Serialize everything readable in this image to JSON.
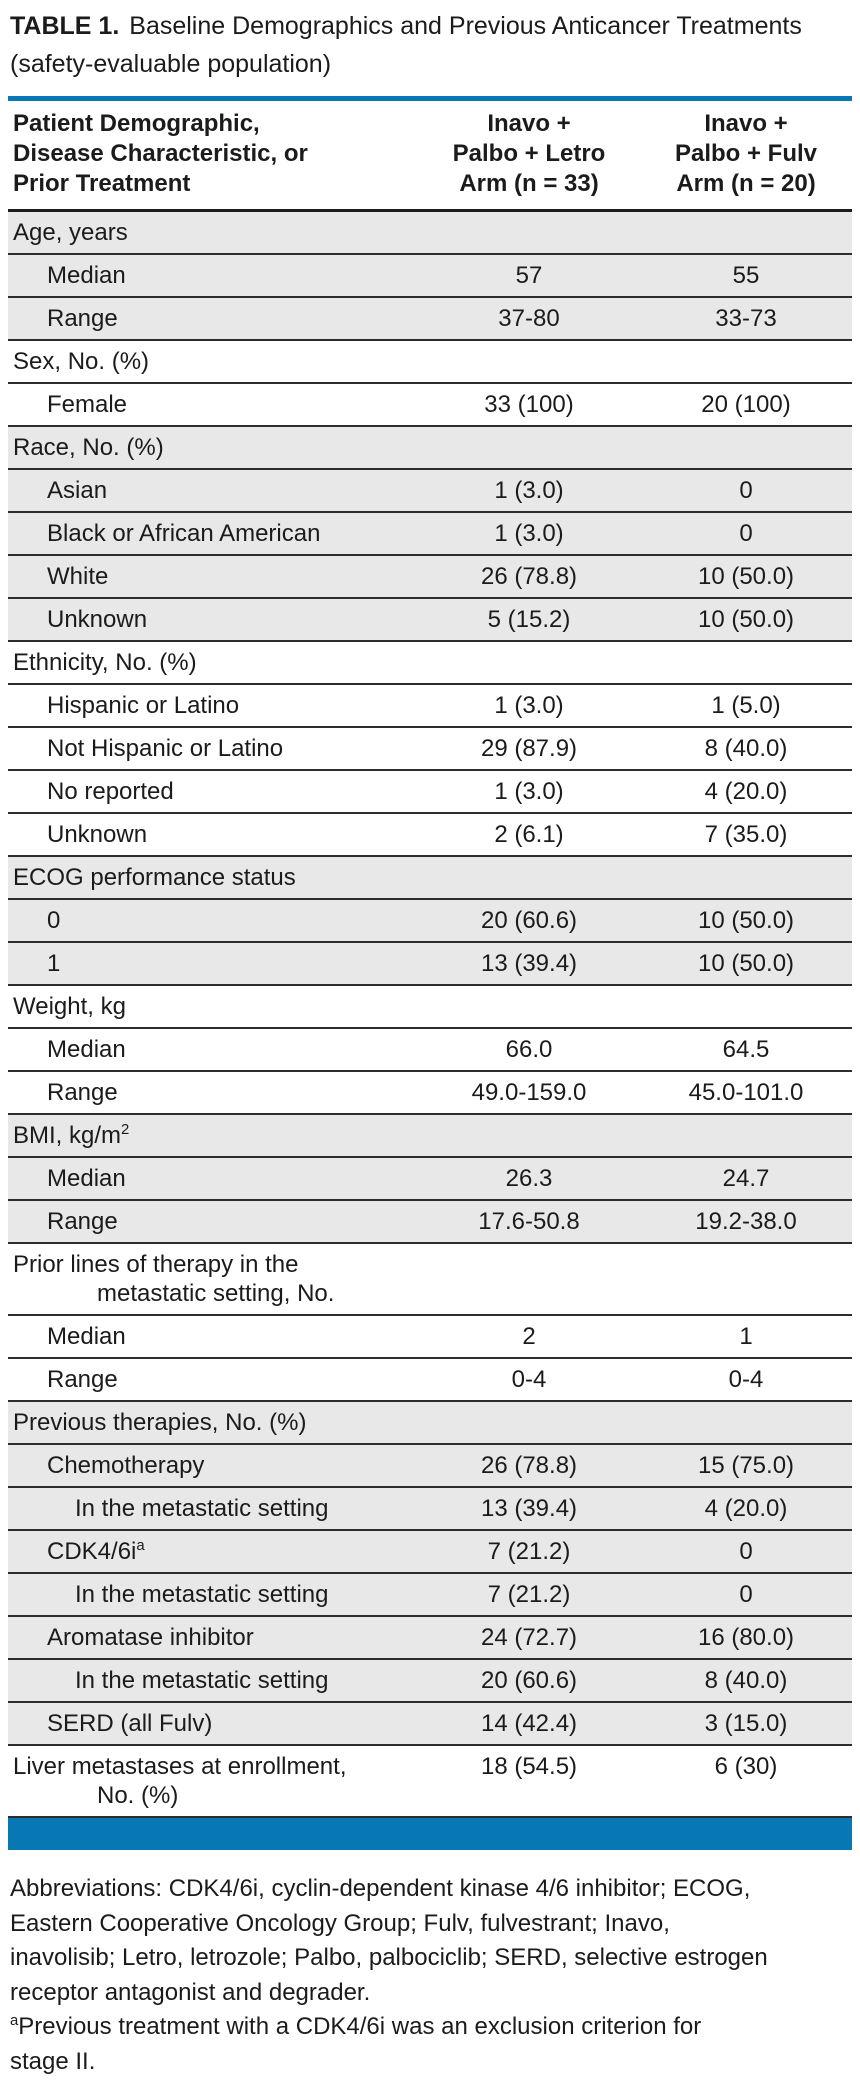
{
  "colors": {
    "accent_blue": "#0878b5",
    "row_shade": "#e8e8e8"
  },
  "title": {
    "label_bold": "TABLE 1.",
    "line1": "Baseline Demographics and Previous Anticancer Treatments",
    "line2": "(safety-evaluable population)"
  },
  "table": {
    "header": {
      "col1_lines": [
        "Patient Demographic,",
        "Disease Characteristic, or",
        "Prior Treatment"
      ],
      "col2_lines": [
        "Inavo +",
        "Palbo + Letro",
        "Arm (n = 33)"
      ],
      "col3_lines": [
        "Inavo +",
        "Palbo + Fulv",
        "Arm (n = 20)"
      ]
    },
    "rows": [
      {
        "label": "Age, years",
        "indent": 0,
        "c2": "",
        "c3": "",
        "shaded": true
      },
      {
        "label": "Median",
        "indent": 1,
        "c2": "57",
        "c3": "55",
        "shaded": true
      },
      {
        "label": "Range",
        "indent": 1,
        "c2": "37-80",
        "c3": "33-73",
        "shaded": true
      },
      {
        "label": "Sex, No. (%)",
        "indent": 0,
        "c2": "",
        "c3": "",
        "shaded": false
      },
      {
        "label": "Female",
        "indent": 1,
        "c2": "33 (100)",
        "c3": "20 (100)",
        "shaded": false
      },
      {
        "label": "Race, No. (%)",
        "indent": 0,
        "c2": "",
        "c3": "",
        "shaded": true
      },
      {
        "label": "Asian",
        "indent": 1,
        "c2": "1 (3.0)",
        "c3": "0",
        "shaded": true
      },
      {
        "label": "Black or African American",
        "indent": 1,
        "c2": "1 (3.0)",
        "c3": "0",
        "shaded": true
      },
      {
        "label": "White",
        "indent": 1,
        "c2": "26 (78.8)",
        "c3": "10 (50.0)",
        "shaded": true
      },
      {
        "label": "Unknown",
        "indent": 1,
        "c2": "5 (15.2)",
        "c3": "10 (50.0)",
        "shaded": true
      },
      {
        "label": "Ethnicity, No. (%)",
        "indent": 0,
        "c2": "",
        "c3": "",
        "shaded": false
      },
      {
        "label": "Hispanic or Latino",
        "indent": 1,
        "c2": "1 (3.0)",
        "c3": "1 (5.0)",
        "shaded": false
      },
      {
        "label": "Not Hispanic or Latino",
        "indent": 1,
        "c2": "29 (87.9)",
        "c3": "8 (40.0)",
        "shaded": false
      },
      {
        "label": "No reported",
        "indent": 1,
        "c2": "1 (3.0)",
        "c3": "4 (20.0)",
        "shaded": false
      },
      {
        "label": "Unknown",
        "indent": 1,
        "c2": "2 (6.1)",
        "c3": "7 (35.0)",
        "shaded": false
      },
      {
        "label": "ECOG performance status",
        "indent": 0,
        "c2": "",
        "c3": "",
        "shaded": true
      },
      {
        "label": "0",
        "indent": 1,
        "c2": "20 (60.6)",
        "c3": "10 (50.0)",
        "shaded": true
      },
      {
        "label": "1",
        "indent": 1,
        "c2": "13 (39.4)",
        "c3": "10 (50.0)",
        "shaded": true
      },
      {
        "label": "Weight, kg",
        "indent": 0,
        "c2": "",
        "c3": "",
        "shaded": false
      },
      {
        "label": "Median",
        "indent": 1,
        "c2": "66.0",
        "c3": "64.5",
        "shaded": false
      },
      {
        "label": "Range",
        "indent": 1,
        "c2": "49.0-159.0",
        "c3": "45.0-101.0",
        "shaded": false
      },
      {
        "label": "BMI, kg/m",
        "label_sup": "2",
        "indent": 0,
        "c2": "",
        "c3": "",
        "shaded": true
      },
      {
        "label": "Median",
        "indent": 1,
        "c2": "26.3",
        "c3": "24.7",
        "shaded": true
      },
      {
        "label": "Range",
        "indent": 1,
        "c2": "17.6-50.8",
        "c3": "19.2-38.0",
        "shaded": true
      },
      {
        "label": "Prior lines of therapy in the",
        "label_cont": "metastatic setting, No.",
        "indent": 0,
        "c2": "",
        "c3": "",
        "shaded": false
      },
      {
        "label": "Median",
        "indent": 1,
        "c2": "2",
        "c3": "1",
        "shaded": false
      },
      {
        "label": "Range",
        "indent": 1,
        "c2": "0-4",
        "c3": "0-4",
        "shaded": false
      },
      {
        "label": "Previous therapies, No. (%)",
        "indent": 0,
        "c2": "",
        "c3": "",
        "shaded": true
      },
      {
        "label": "Chemotherapy",
        "indent": 1,
        "c2": "26 (78.8)",
        "c3": "15 (75.0)",
        "shaded": true
      },
      {
        "label": "In the metastatic setting",
        "indent": 2,
        "c2": "13 (39.4)",
        "c3": "4 (20.0)",
        "shaded": true
      },
      {
        "label": "CDK4/6i",
        "label_sup": "a",
        "indent": 1,
        "c2": "7 (21.2)",
        "c3": "0",
        "shaded": true
      },
      {
        "label": "In the metastatic setting",
        "indent": 2,
        "c2": "7 (21.2)",
        "c3": "0",
        "shaded": true
      },
      {
        "label": "Aromatase inhibitor",
        "indent": 1,
        "c2": "24 (72.7)",
        "c3": "16 (80.0)",
        "shaded": true
      },
      {
        "label": "In the metastatic setting",
        "indent": 2,
        "c2": "20 (60.6)",
        "c3": "8 (40.0)",
        "shaded": true
      },
      {
        "label": "SERD (all Fulv)",
        "indent": 1,
        "c2": "14 (42.4)",
        "c3": "3 (15.0)",
        "shaded": true
      },
      {
        "label": "Liver metastases at enrollment,",
        "label_cont": "No. (%)",
        "indent": 0,
        "c2": "18 (54.5)",
        "c3": "6 (30)",
        "shaded": false
      }
    ]
  },
  "footnotes": {
    "abbreviations_lines": [
      "Abbreviations: CDK4/6i, cyclin-dependent kinase 4/6 inhibitor; ECOG,",
      "Eastern Cooperative Oncology Group; Fulv, fulvestrant; Inavo,",
      "inavolisib; Letro, letrozole; Palbo, palbociclib; SERD, selective estrogen",
      "receptor antagonist and degrader."
    ],
    "footnote_a": {
      "sup": "a",
      "lines": [
        "Previous treatment with a CDK4/6i was an exclusion criterion for",
        "stage II."
      ]
    }
  }
}
